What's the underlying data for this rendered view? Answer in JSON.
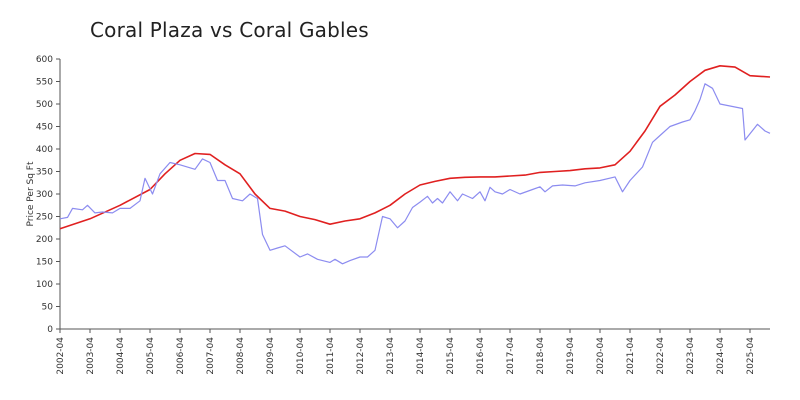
{
  "chart_data": {
    "type": "line",
    "title": "Coral Plaza vs Coral Gables",
    "xlabel": "",
    "ylabel": "Price Per Sq Ft",
    "x_range": [
      "2002-04",
      "2025-12"
    ],
    "ylim": [
      0,
      600
    ],
    "y_ticks": [
      0,
      50,
      100,
      150,
      200,
      250,
      300,
      350,
      400,
      450,
      500,
      550,
      600
    ],
    "x_ticks": [
      "2002-04",
      "2003-04",
      "2004-04",
      "2005-04",
      "2006-04",
      "2007-04",
      "2008-04",
      "2009-04",
      "2010-04",
      "2011-04",
      "2012-04",
      "2013-04",
      "2014-04",
      "2015-04",
      "2016-04",
      "2017-04",
      "2018-04",
      "2019-04",
      "2020-04",
      "2021-04",
      "2022-04",
      "2023-04",
      "2024-04",
      "2025-04"
    ],
    "grid": false,
    "legend": "none",
    "series": [
      {
        "color": "#e02020",
        "points": [
          [
            "2002-04",
            223
          ],
          [
            "2003-04",
            245
          ],
          [
            "2004-04",
            275
          ],
          [
            "2005-04",
            310
          ],
          [
            "2005-10",
            345
          ],
          [
            "2006-04",
            375
          ],
          [
            "2006-10",
            390
          ],
          [
            "2007-04",
            388
          ],
          [
            "2007-10",
            365
          ],
          [
            "2008-04",
            345
          ],
          [
            "2008-10",
            300
          ],
          [
            "2009-04",
            268
          ],
          [
            "2009-10",
            262
          ],
          [
            "2010-04",
            250
          ],
          [
            "2010-10",
            243
          ],
          [
            "2011-04",
            233
          ],
          [
            "2011-10",
            240
          ],
          [
            "2012-04",
            245
          ],
          [
            "2012-10",
            258
          ],
          [
            "2013-04",
            275
          ],
          [
            "2013-10",
            300
          ],
          [
            "2014-04",
            320
          ],
          [
            "2014-10",
            328
          ],
          [
            "2015-04",
            335
          ],
          [
            "2015-10",
            337
          ],
          [
            "2016-04",
            338
          ],
          [
            "2016-10",
            338
          ],
          [
            "2017-04",
            340
          ],
          [
            "2017-10",
            342
          ],
          [
            "2018-04",
            348
          ],
          [
            "2018-10",
            350
          ],
          [
            "2019-04",
            352
          ],
          [
            "2019-10",
            356
          ],
          [
            "2020-04",
            358
          ],
          [
            "2020-10",
            365
          ],
          [
            "2021-04",
            395
          ],
          [
            "2021-10",
            440
          ],
          [
            "2022-04",
            495
          ],
          [
            "2022-10",
            520
          ],
          [
            "2023-04",
            550
          ],
          [
            "2023-10",
            575
          ],
          [
            "2024-04",
            585
          ],
          [
            "2024-10",
            582
          ],
          [
            "2025-04",
            563
          ],
          [
            "2025-12",
            560
          ]
        ]
      },
      {
        "color": "#8c8cf0",
        "points": [
          [
            "2002-04",
            245
          ],
          [
            "2002-07",
            248
          ],
          [
            "2002-09",
            268
          ],
          [
            "2003-01",
            265
          ],
          [
            "2003-03",
            275
          ],
          [
            "2003-06",
            258
          ],
          [
            "2003-09",
            260
          ],
          [
            "2004-01",
            258
          ],
          [
            "2004-04",
            268
          ],
          [
            "2004-08",
            268
          ],
          [
            "2004-12",
            285
          ],
          [
            "2005-02",
            335
          ],
          [
            "2005-05",
            300
          ],
          [
            "2005-08",
            345
          ],
          [
            "2005-12",
            370
          ],
          [
            "2006-04",
            365
          ],
          [
            "2006-10",
            355
          ],
          [
            "2007-01",
            378
          ],
          [
            "2007-04",
            370
          ],
          [
            "2007-07",
            330
          ],
          [
            "2007-10",
            330
          ],
          [
            "2008-01",
            290
          ],
          [
            "2008-05",
            285
          ],
          [
            "2008-08",
            300
          ],
          [
            "2008-11",
            290
          ],
          [
            "2009-01",
            210
          ],
          [
            "2009-04",
            175
          ],
          [
            "2009-07",
            180
          ],
          [
            "2009-10",
            185
          ],
          [
            "2010-04",
            160
          ],
          [
            "2010-07",
            167
          ],
          [
            "2010-11",
            155
          ],
          [
            "2011-04",
            148
          ],
          [
            "2011-06",
            155
          ],
          [
            "2011-09",
            145
          ],
          [
            "2011-12",
            152
          ],
          [
            "2012-04",
            160
          ],
          [
            "2012-07",
            160
          ],
          [
            "2012-10",
            175
          ],
          [
            "2013-01",
            250
          ],
          [
            "2013-04",
            245
          ],
          [
            "2013-07",
            225
          ],
          [
            "2013-10",
            240
          ],
          [
            "2014-01",
            270
          ],
          [
            "2014-04",
            282
          ],
          [
            "2014-07",
            295
          ],
          [
            "2014-09",
            280
          ],
          [
            "2014-11",
            290
          ],
          [
            "2015-01",
            280
          ],
          [
            "2015-04",
            305
          ],
          [
            "2015-07",
            285
          ],
          [
            "2015-09",
            300
          ],
          [
            "2016-01",
            290
          ],
          [
            "2016-04",
            305
          ],
          [
            "2016-06",
            285
          ],
          [
            "2016-08",
            315
          ],
          [
            "2016-10",
            305
          ],
          [
            "2017-01",
            300
          ],
          [
            "2017-04",
            310
          ],
          [
            "2017-08",
            300
          ],
          [
            "2018-01",
            310
          ],
          [
            "2018-04",
            316
          ],
          [
            "2018-06",
            305
          ],
          [
            "2018-09",
            318
          ],
          [
            "2019-01",
            320
          ],
          [
            "2019-06",
            318
          ],
          [
            "2019-10",
            325
          ],
          [
            "2020-04",
            330
          ],
          [
            "2020-10",
            338
          ],
          [
            "2021-01",
            305
          ],
          [
            "2021-04",
            330
          ],
          [
            "2021-09",
            360
          ],
          [
            "2022-01",
            415
          ],
          [
            "2022-04",
            430
          ],
          [
            "2022-08",
            450
          ],
          [
            "2023-01",
            460
          ],
          [
            "2023-04",
            465
          ],
          [
            "2023-06",
            485
          ],
          [
            "2023-08",
            510
          ],
          [
            "2023-10",
            545
          ],
          [
            "2024-01",
            535
          ],
          [
            "2024-04",
            500
          ],
          [
            "2025-01",
            490
          ],
          [
            "2025-02",
            420
          ],
          [
            "2025-07",
            455
          ],
          [
            "2025-10",
            440
          ],
          [
            "2025-12",
            435
          ]
        ]
      }
    ]
  }
}
